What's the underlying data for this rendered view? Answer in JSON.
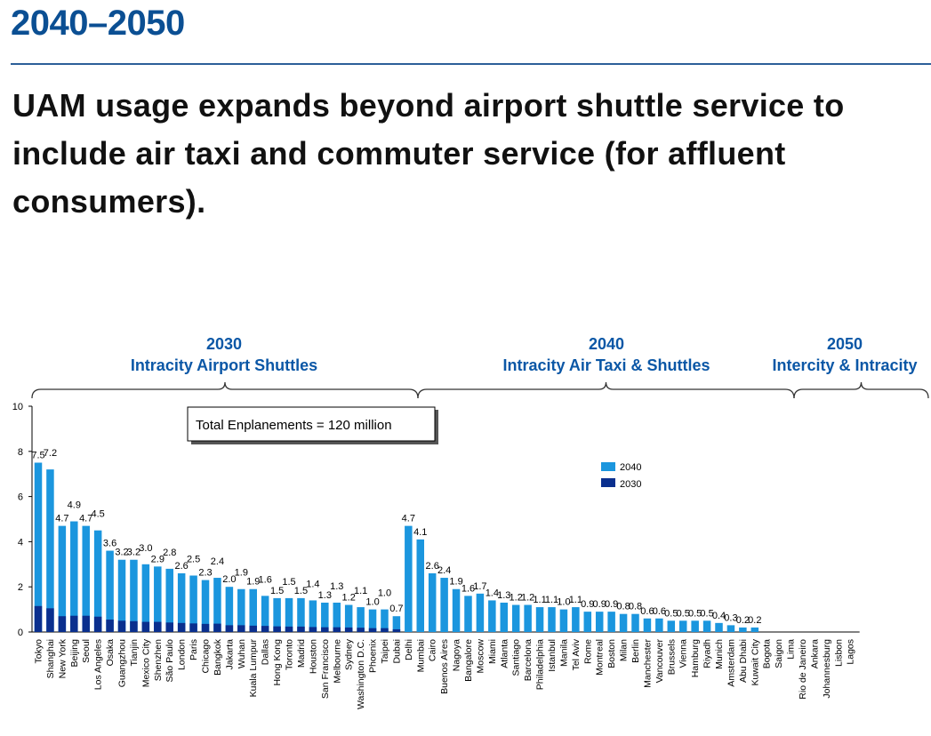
{
  "header": {
    "title": "2040–2050",
    "subtitle": "UAM usage expands beyond airport shuttle service to include air taxi and commuter service (for affluent consumers)."
  },
  "chart_data": {
    "type": "bar",
    "stacked": true,
    "ylim": [
      0,
      10
    ],
    "yticks": [
      "0",
      "2",
      "4",
      "6",
      "8",
      "10"
    ],
    "xlabel": "",
    "ylabel": "",
    "legend_position": "upper-right",
    "annotation": "Total Enplanements = 120 million",
    "sections": [
      {
        "year": "2030",
        "label": "Intracity Airport Shuttles"
      },
      {
        "year": "2040",
        "label": "Intracity Air Taxi & Shuttles"
      },
      {
        "year": "2050",
        "label": "Intercity & Intracity"
      }
    ],
    "series": [
      {
        "name": "2040",
        "color": "#1b96de"
      },
      {
        "name": "2030",
        "color": "#0a2f8e"
      }
    ],
    "categories": [
      "Tokyo",
      "Shanghai",
      "New York",
      "Beijing",
      "Seoul",
      "Los Angeles",
      "Osaka",
      "Guangzhou",
      "Tianjin",
      "Mexico City",
      "Shenzhen",
      "São Paulo",
      "London",
      "Paris",
      "Chicago",
      "Bangkok",
      "Jakarta",
      "Wuhan",
      "Kuala Lumpur",
      "Dallas",
      "Hong Kong",
      "Toronto",
      "Madrid",
      "Houston",
      "San Francisco",
      "Melbourne",
      "Sydney",
      "Washington D.C.",
      "Phoenix",
      "Taipei",
      "Dubai",
      "Delhi",
      "Mumbai",
      "Cairo",
      "Buenos Aires",
      "Nagoya",
      "Bangalore",
      "Moscow",
      "Miami",
      "Atlanta",
      "Santiago",
      "Barcelona",
      "Philadelphia",
      "Istanbul",
      "Manila",
      "Tel Aviv",
      "Rome",
      "Montreal",
      "Boston",
      "Milan",
      "Berlin",
      "Manchester",
      "Vancouver",
      "Brussels",
      "Vienna",
      "Hamburg",
      "Riyadh",
      "Munich",
      "Amsterdam",
      "Abu Dhabi",
      "Kuwait City",
      "Bogota",
      "Saigon",
      "Lima",
      "Rio de Janeiro",
      "Ankara",
      "Johannesburg",
      "Lisbon",
      "Lagos"
    ],
    "totals": [
      7.5,
      7.2,
      4.7,
      4.9,
      4.7,
      4.5,
      3.6,
      3.2,
      3.2,
      3.0,
      2.9,
      2.8,
      2.6,
      2.5,
      2.3,
      2.4,
      2.0,
      1.9,
      1.9,
      1.6,
      1.5,
      1.5,
      1.5,
      1.4,
      1.3,
      1.3,
      1.2,
      1.1,
      1.0,
      1.0,
      0.7,
      4.7,
      4.1,
      2.6,
      2.4,
      1.9,
      1.6,
      1.7,
      1.4,
      1.3,
      1.2,
      1.2,
      1.1,
      1.1,
      1.0,
      1.1,
      0.9,
      0.9,
      0.9,
      0.8,
      0.8,
      0.6,
      0.6,
      0.5,
      0.5,
      0.5,
      0.5,
      0.4,
      0.3,
      0.2,
      0.2,
      0,
      0,
      0,
      0,
      0,
      0,
      0,
      0
    ],
    "labels": [
      "7.5",
      "7.2",
      "4.7",
      "4.9",
      "4.7",
      "4.5",
      "3.6",
      "3.2",
      "3.2",
      "3.0",
      "2.9",
      "2.8",
      "2.6",
      "2.5",
      "2.3",
      "2.4",
      "2.0",
      "1.9",
      "1.9",
      "1.6",
      "1.5",
      "1.5",
      "1.5",
      "1.4",
      "1.3",
      "1.3",
      "1.2",
      "1.1",
      "1.0",
      "1.0",
      "0.7",
      "4.7",
      "4.1",
      "2.6",
      "2.4",
      "1.9",
      "1.6",
      "1.7",
      "1.4",
      "1.3",
      "1.2",
      "1.2",
      "1.1",
      "1.1",
      "1.0",
      "1.1",
      "0.9",
      "0.9",
      "0.9",
      "0.8",
      "0.8",
      "0.6",
      "0.6",
      "0.5",
      "0.5",
      "0.5",
      "0.5",
      "0.4",
      "0.3",
      "0.2",
      "0.2",
      "",
      "",
      "",
      "",
      "",
      "",
      "",
      ""
    ],
    "values_2030": [
      1.15,
      1.05,
      0.7,
      0.72,
      0.72,
      0.68,
      0.55,
      0.5,
      0.48,
      0.45,
      0.45,
      0.42,
      0.4,
      0.38,
      0.36,
      0.37,
      0.3,
      0.3,
      0.28,
      0.27,
      0.25,
      0.24,
      0.24,
      0.22,
      0.21,
      0.21,
      0.2,
      0.19,
      0.17,
      0.17,
      0.12,
      0,
      0,
      0,
      0,
      0,
      0,
      0,
      0,
      0,
      0,
      0,
      0,
      0,
      0,
      0,
      0,
      0,
      0,
      0,
      0,
      0,
      0,
      0,
      0,
      0,
      0,
      0,
      0,
      0,
      0,
      0,
      0,
      0,
      0,
      0,
      0,
      0,
      0
    ]
  }
}
